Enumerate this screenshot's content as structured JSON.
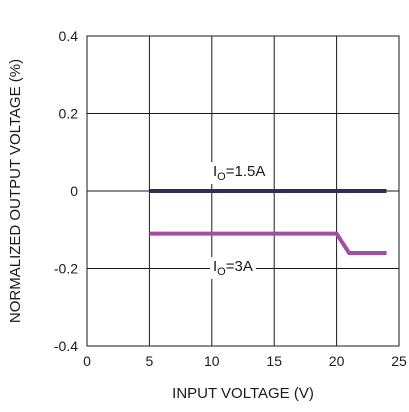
{
  "chart_data": {
    "type": "line",
    "xlabel": "INPUT VOLTAGE (V)",
    "ylabel": "NORMALIZED OUTPUT VOLTAGE (%)",
    "xlim": [
      0,
      25
    ],
    "ylim": [
      -0.4,
      0.4
    ],
    "x_ticks": [
      0,
      5,
      10,
      15,
      20,
      25
    ],
    "y_ticks": [
      0.4,
      0.2,
      0,
      -0.2,
      -0.4
    ],
    "x_tick_labels": [
      "0",
      "5",
      "10",
      "15",
      "20",
      "25"
    ],
    "y_tick_labels": [
      "0.4",
      "0.2",
      "0",
      "-0.2",
      "-0.4"
    ],
    "grid": true,
    "series": [
      {
        "name": "IO=1.5A",
        "label_main": "I",
        "label_sub": "O",
        "label_rest": "=1.5A",
        "color": "#2b2d5e",
        "points": [
          [
            5,
            0
          ],
          [
            24,
            0
          ]
        ]
      },
      {
        "name": "IO=3A",
        "label_main": "I",
        "label_sub": "O",
        "label_rest": "=3A",
        "color": "#a64ca6",
        "points": [
          [
            5,
            -0.11
          ],
          [
            20,
            -0.11
          ],
          [
            21,
            -0.16
          ],
          [
            24,
            -0.16
          ]
        ]
      }
    ]
  }
}
